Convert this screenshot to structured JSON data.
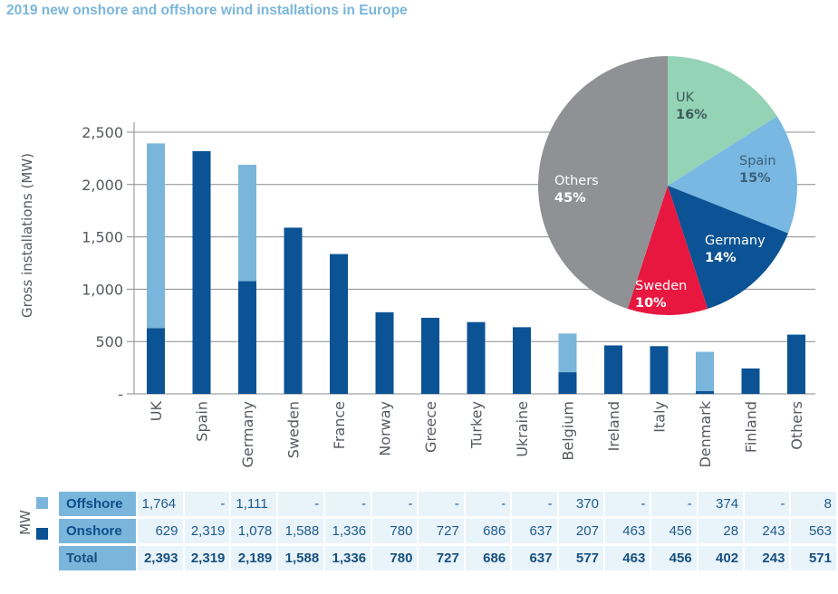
{
  "title": "2019 new onshore and offshore wind installations in Europe",
  "colors": {
    "onshore": "#0b5394",
    "offshore": "#7ab6db",
    "title": "#7ab6db",
    "axis_text": "#555a60",
    "table_label_bg": "#7ab6db",
    "table_cell_bg": "#e9f3fa",
    "table_text": "#1d5a8c"
  },
  "table": {
    "unit_label": "MW",
    "rows": [
      {
        "label": "Offshore",
        "values": [
          "1,764",
          "-",
          "1,111",
          "-",
          "-",
          "-",
          "-",
          "-",
          "-",
          "370",
          "-",
          "-",
          "374",
          "-",
          "8"
        ]
      },
      {
        "label": "Onshore",
        "values": [
          "629",
          "2,319",
          "1,078",
          "1,588",
          "1,336",
          "780",
          "727",
          "686",
          "637",
          "207",
          "463",
          "456",
          "28",
          "243",
          "563"
        ]
      },
      {
        "label": "Total",
        "values": [
          "2,393",
          "2,319",
          "2,189",
          "1,588",
          "1,336",
          "780",
          "727",
          "686",
          "637",
          "577",
          "463",
          "456",
          "402",
          "243",
          "571"
        ]
      }
    ]
  },
  "chart_data": [
    {
      "type": "bar",
      "stacked": true,
      "title": "2019 new onshore and offshore wind installations in Europe",
      "xlabel": "",
      "ylabel": "Gross installations (MW)",
      "ylim": [
        0,
        2500
      ],
      "yticks": [
        0,
        500,
        1000,
        1500,
        2000,
        2500
      ],
      "ytick_labels": [
        "-",
        "500",
        "1,000",
        "1,500",
        "2,000",
        "2,500"
      ],
      "grid": true,
      "categories": [
        "UK",
        "Spain",
        "Germany",
        "Sweden",
        "France",
        "Norway",
        "Greece",
        "Turkey",
        "Ukraine",
        "Belgium",
        "Ireland",
        "Italy",
        "Denmark",
        "Finland",
        "Others"
      ],
      "series": [
        {
          "name": "Onshore",
          "color": "#0b5394",
          "values": [
            629,
            2319,
            1078,
            1588,
            1336,
            780,
            727,
            686,
            637,
            207,
            463,
            456,
            28,
            243,
            563
          ]
        },
        {
          "name": "Offshore",
          "color": "#7ab6db",
          "values": [
            1764,
            0,
            1111,
            0,
            0,
            0,
            0,
            0,
            0,
            370,
            0,
            0,
            374,
            0,
            8
          ]
        }
      ],
      "totals": [
        2393,
        2319,
        2189,
        1588,
        1336,
        780,
        727,
        686,
        637,
        577,
        463,
        456,
        402,
        243,
        571
      ],
      "legend": "bottom-left (table)"
    },
    {
      "type": "pie",
      "title": "",
      "slices": [
        {
          "label": "UK",
          "value": 16,
          "display": "16%",
          "color": "#95d3b6",
          "text_color": "#3f5b5a"
        },
        {
          "label": "Spain",
          "value": 15,
          "display": "15%",
          "color": "#78b8e2",
          "text_color": "#3c5f7a"
        },
        {
          "label": "Germany",
          "value": 14,
          "display": "14%",
          "color": "#0b5394",
          "text_color": "#ffffff"
        },
        {
          "label": "Sweden",
          "value": 10,
          "display": "10%",
          "color": "#e8173f",
          "text_color": "#ffffff"
        },
        {
          "label": "Others",
          "value": 45,
          "display": "45%",
          "color": "#8f9195",
          "text_color": "#ffffff"
        }
      ],
      "start_angle": "12 o'clock",
      "direction": "clockwise",
      "legend": "none (labels inside slices)"
    }
  ]
}
